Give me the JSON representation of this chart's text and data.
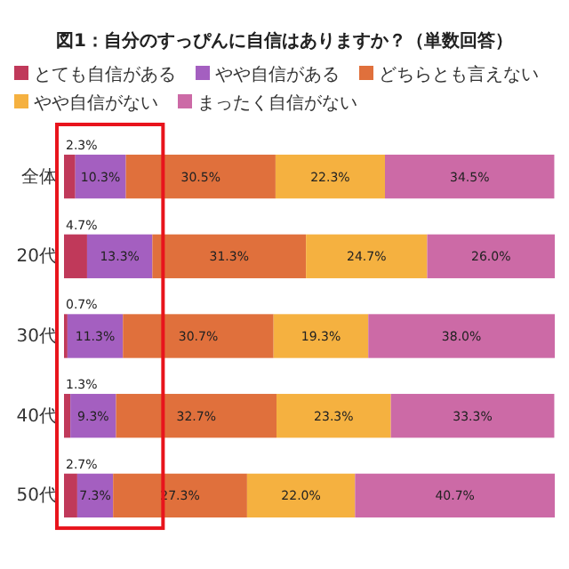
{
  "chart_data": {
    "type": "bar",
    "orientation": "horizontal",
    "stacked": true,
    "title": "図1：自分のすっぴんに自信はありますか？（単数回答）",
    "categories": [
      "全体",
      "20代",
      "30代",
      "40代",
      "50代"
    ],
    "series": [
      {
        "name": "とても自信がある",
        "color": "#c0395a",
        "values": [
          2.3,
          4.7,
          0.7,
          1.3,
          2.7
        ],
        "value_labels": [
          "2.3%",
          "4.7%",
          "0.7%",
          "1.3%",
          "2.7%"
        ]
      },
      {
        "name": "やや自信がある",
        "color": "#a45fc0",
        "values": [
          10.3,
          13.3,
          11.3,
          9.3,
          7.3
        ],
        "value_labels": [
          "10.3%",
          "13.3%",
          "11.3%",
          "9.3%",
          "7.3%"
        ]
      },
      {
        "name": "どちらとも言えない",
        "color": "#e0703c",
        "values": [
          30.5,
          31.3,
          30.7,
          32.7,
          27.3
        ],
        "value_labels": [
          "30.5%",
          "31.3%",
          "30.7%",
          "32.7%",
          "27.3%"
        ]
      },
      {
        "name": "やや自信がない",
        "color": "#f5b140",
        "values": [
          22.3,
          24.7,
          19.3,
          23.3,
          22.0
        ],
        "value_labels": [
          "22.3%",
          "24.7%",
          "19.3%",
          "23.3%",
          "22.0%"
        ]
      },
      {
        "name": "まったく自信がない",
        "color": "#cc6aa6",
        "values": [
          34.5,
          26.0,
          38.0,
          33.3,
          40.7
        ],
        "value_labels": [
          "34.5%",
          "26.0%",
          "38.0%",
          "33.3%",
          "40.7%"
        ]
      }
    ],
    "tick_labels": "y",
    "legend": "top"
  }
}
